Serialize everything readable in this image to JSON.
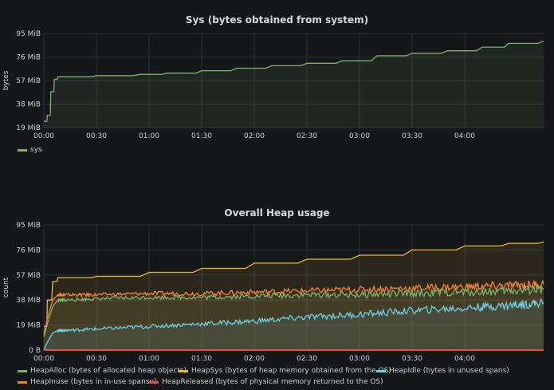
{
  "panels": [
    {
      "title": "Sys (bytes obtained from system)",
      "ylabel": "bytes",
      "y_ticks": [
        "95 MiB",
        "76 MiB",
        "57 MiB",
        "38 MiB",
        "19 MiB"
      ],
      "x_ticks": [
        "00:00",
        "00:30",
        "01:00",
        "01:30",
        "02:00",
        "02:30",
        "03:00",
        "03:30",
        "04:00"
      ],
      "legend": [
        {
          "label": "sys",
          "color": "#7eb26d"
        }
      ]
    },
    {
      "title": "Overall Heap usage",
      "ylabel": "count",
      "y_ticks": [
        "95 MiB",
        "76 MiB",
        "57 MiB",
        "38 MiB",
        "19 MiB",
        "0 B"
      ],
      "x_ticks": [
        "00:00",
        "00:30",
        "01:00",
        "01:30",
        "02:00",
        "02:30",
        "03:00",
        "03:30",
        "04:00"
      ],
      "legend": [
        {
          "label": "HeapAlloc (bytes of allocated heap objects)",
          "color": "#7eb26d"
        },
        {
          "label": "HeapSys (bytes of heap memory obtained from the OS)",
          "color": "#eab839"
        },
        {
          "label": "HeapIdle (bytes in unused spans)",
          "color": "#6ed0e0"
        },
        {
          "label": "HeapInuse (bytes in in-use spanse)",
          "color": "#ef843c"
        },
        {
          "label": "HeapReleased (bytes of physical memory returned to the OS)",
          "color": "#e24d42"
        }
      ]
    }
  ],
  "chart_data": [
    {
      "type": "area",
      "title": "Sys (bytes obtained from system)",
      "ylabel": "bytes",
      "ylim_mib": [
        19,
        95
      ],
      "x_range_minutes": [
        0,
        285
      ],
      "series": [
        {
          "name": "sys",
          "color": "#7eb26d",
          "x": [
            0,
            2,
            4,
            6,
            8,
            12,
            30,
            55,
            70,
            90,
            110,
            130,
            150,
            170,
            190,
            210,
            230,
            250,
            265,
            285
          ],
          "y": [
            24,
            29,
            48,
            58,
            60,
            60,
            61,
            62,
            63,
            65,
            67,
            69,
            71,
            73,
            77,
            79,
            81,
            84,
            87,
            89
          ]
        }
      ]
    },
    {
      "type": "area",
      "title": "Overall Heap usage",
      "ylabel": "count",
      "ylim_mib": [
        0,
        95
      ],
      "x_range_minutes": [
        0,
        285
      ],
      "series": [
        {
          "name": "HeapSys (bytes of heap memory obtained from the OS)",
          "color": "#eab839",
          "x": [
            0,
            2,
            5,
            8,
            12,
            30,
            60,
            90,
            120,
            150,
            180,
            210,
            240,
            265,
            285
          ],
          "y": [
            18,
            38,
            52,
            55,
            55,
            56,
            59,
            62,
            66,
            69,
            72,
            76,
            79,
            81,
            82
          ]
        },
        {
          "name": "HeapInuse (bytes in in-use spanse)",
          "color": "#ef843c",
          "x": [
            0,
            2,
            5,
            8,
            12,
            30,
            60,
            90,
            120,
            150,
            180,
            210,
            240,
            265,
            285
          ],
          "y": [
            12,
            24,
            38,
            42,
            42,
            42,
            43,
            43,
            44,
            45,
            46,
            47,
            48,
            49,
            50
          ]
        },
        {
          "name": "HeapAlloc (bytes of allocated heap objects)",
          "color": "#7eb26d",
          "x": [
            0,
            2,
            5,
            8,
            12,
            30,
            60,
            90,
            120,
            150,
            180,
            210,
            240,
            265,
            285
          ],
          "y": [
            10,
            20,
            33,
            38,
            38,
            39,
            40,
            40,
            41,
            42,
            42,
            43,
            44,
            45,
            46
          ]
        },
        {
          "name": "HeapIdle (bytes in unused spans)",
          "color": "#6ed0e0",
          "x": [
            0,
            2,
            5,
            8,
            12,
            30,
            60,
            90,
            120,
            150,
            180,
            210,
            240,
            265,
            285
          ],
          "y": [
            0,
            6,
            13,
            15,
            15,
            16,
            18,
            20,
            22,
            25,
            27,
            30,
            32,
            34,
            36
          ]
        },
        {
          "name": "HeapReleased (bytes of physical memory returned to the OS)",
          "color": "#e24d42",
          "x": [
            0,
            285
          ],
          "y": [
            0,
            0
          ]
        }
      ]
    }
  ]
}
